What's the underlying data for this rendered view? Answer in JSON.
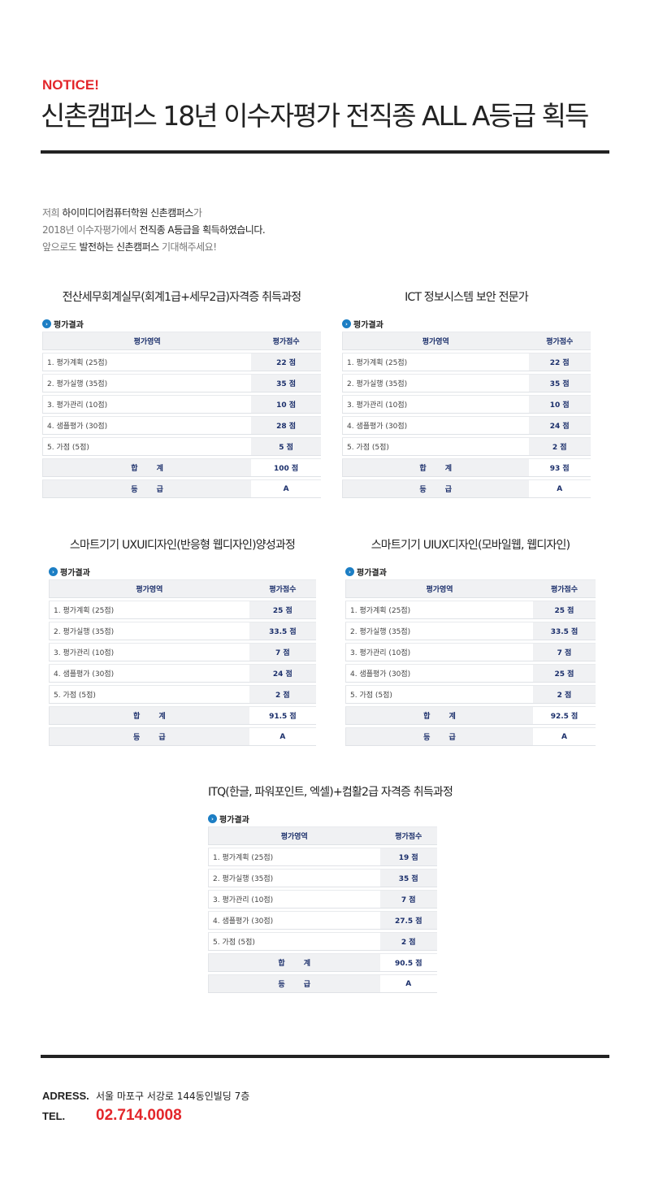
{
  "header": {
    "notice": "NOTICE!",
    "title": "신촌캠퍼스 18년 이수자평가 전직종 ALL A등급 획득"
  },
  "intro": {
    "l1a": "저희 ",
    "l1b": "하이미디어컴퓨터학원 신촌캠퍼스",
    "l1c": "가",
    "l2a": "2018년 이수자평가에서 ",
    "l2b": "전직종 A등급을 획득하였습니다.",
    "l3a": "앞으로도 ",
    "l3b": "발전하는 신촌캠퍼스",
    "l3c": " 기대해주세요!"
  },
  "accent": "#e3262b",
  "table_text_color": "#1b2f6b",
  "icon_color": "#1c7ec4",
  "tables": [
    {
      "title": "전산세무회계실무(회계1급+세무2급)자격증 취득과정",
      "label": "평가결과",
      "head": [
        "평가영역",
        "평가점수"
      ],
      "rows": [
        [
          "1. 평가계획 (25점)",
          "22 점"
        ],
        [
          "2. 평가실행 (35점)",
          "35 점"
        ],
        [
          "3. 평가관리 (10점)",
          "10 점"
        ],
        [
          "4. 샘플평가 (30점)",
          "28 점"
        ],
        [
          "5. 가점 (5점)",
          "5 점"
        ]
      ],
      "total": [
        "합 계",
        "100 점"
      ],
      "grade": [
        "등 급",
        "A"
      ]
    },
    {
      "title": "ICT 정보시스템 보안 전문가",
      "label": "평가결과",
      "head": [
        "평가영역",
        "평가점수"
      ],
      "rows": [
        [
          "1. 평가계획 (25점)",
          "22 점"
        ],
        [
          "2. 평가실행 (35점)",
          "35 점"
        ],
        [
          "3. 평가관리 (10점)",
          "10 점"
        ],
        [
          "4. 샘플평가 (30점)",
          "24 점"
        ],
        [
          "5. 가점 (5점)",
          "2 점"
        ]
      ],
      "total": [
        "합 계",
        "93 점"
      ],
      "grade": [
        "등 급",
        "A"
      ]
    },
    {
      "title": "스마트기기 UXUI디자인(반응형 웹디자인)양성과정",
      "label": "평가결과",
      "head": [
        "평가영역",
        "평가점수"
      ],
      "rows": [
        [
          "1. 평가계획 (25점)",
          "25 점"
        ],
        [
          "2. 평가실행 (35점)",
          "33.5 점"
        ],
        [
          "3. 평가관리 (10점)",
          "7 점"
        ],
        [
          "4. 샘플평가 (30점)",
          "24 점"
        ],
        [
          "5. 가점 (5점)",
          "2 점"
        ]
      ],
      "total": [
        "합 계",
        "91.5 점"
      ],
      "grade": [
        "등 급",
        "A"
      ]
    },
    {
      "title": "스마트기기 UIUX디자인(모바일웹, 웹디자인)",
      "label": "평가결과",
      "head": [
        "평가영역",
        "평가점수"
      ],
      "rows": [
        [
          "1. 평가계획 (25점)",
          "25 점"
        ],
        [
          "2. 평가실행 (35점)",
          "33.5 점"
        ],
        [
          "3. 평가관리 (10점)",
          "7 점"
        ],
        [
          "4. 샘플평가 (30점)",
          "25 점"
        ],
        [
          "5. 가점 (5점)",
          "2 점"
        ]
      ],
      "total": [
        "합 계",
        "92.5 점"
      ],
      "grade": [
        "등 급",
        "A"
      ]
    },
    {
      "title": "ITQ(한글, 파워포인트, 엑셀)+컴활2급 자격증 취득과정",
      "label": "평가결과",
      "head": [
        "평가영역",
        "평가점수"
      ],
      "rows": [
        [
          "1. 평가계획 (25점)",
          "19 점"
        ],
        [
          "2. 평가실행 (35점)",
          "35 점"
        ],
        [
          "3. 평가관리 (10점)",
          "7 점"
        ],
        [
          "4. 샘플평가 (30점)",
          "27.5 점"
        ],
        [
          "5. 가점 (5점)",
          "2 점"
        ]
      ],
      "total": [
        "합 계",
        "90.5 점"
      ],
      "grade": [
        "등 급",
        "A"
      ]
    }
  ],
  "footer": {
    "addr_label": "ADRESS.",
    "addr": "서울 마포구 서강로 144동인빌딩 7층",
    "tel_label": "TEL.",
    "tel": "02.714.0008"
  }
}
